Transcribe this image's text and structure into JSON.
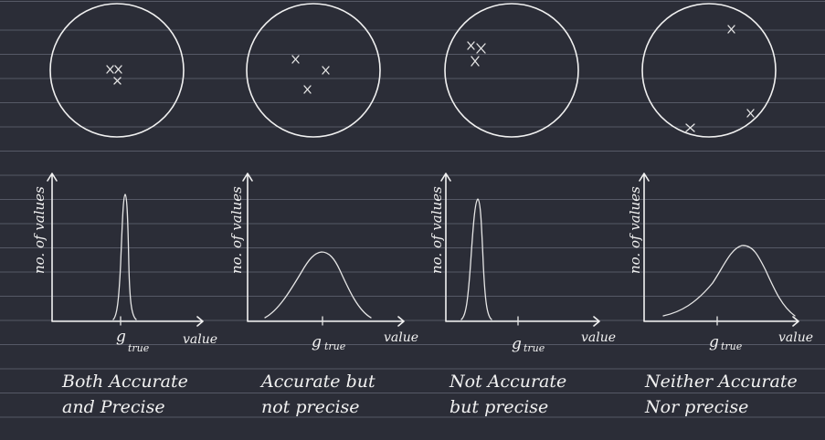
{
  "panels": [
    {
      "ylabel": "no. of values",
      "xlabel": "value",
      "marker": "g",
      "marker_sub": "true",
      "caption_line1": "Both Accurate",
      "caption_line2": "and Precise"
    },
    {
      "ylabel": "no. of values",
      "xlabel": "value",
      "marker": "g",
      "marker_sub": "true",
      "caption_line1": "Accurate but",
      "caption_line2": "not precise"
    },
    {
      "ylabel": "no. of values",
      "xlabel": "value",
      "marker": "g",
      "marker_sub": "true",
      "caption_line1": "Not Accurate",
      "caption_line2": "but precise"
    },
    {
      "ylabel": "no. of values",
      "xlabel": "value",
      "marker": "g",
      "marker_sub": "true",
      "caption_line1": "Neither Accurate",
      "caption_line2": "Nor precise"
    }
  ],
  "colors": {
    "background": "#2b2d37",
    "ruled_line": "#565966",
    "ink": "#f1f1f1"
  }
}
